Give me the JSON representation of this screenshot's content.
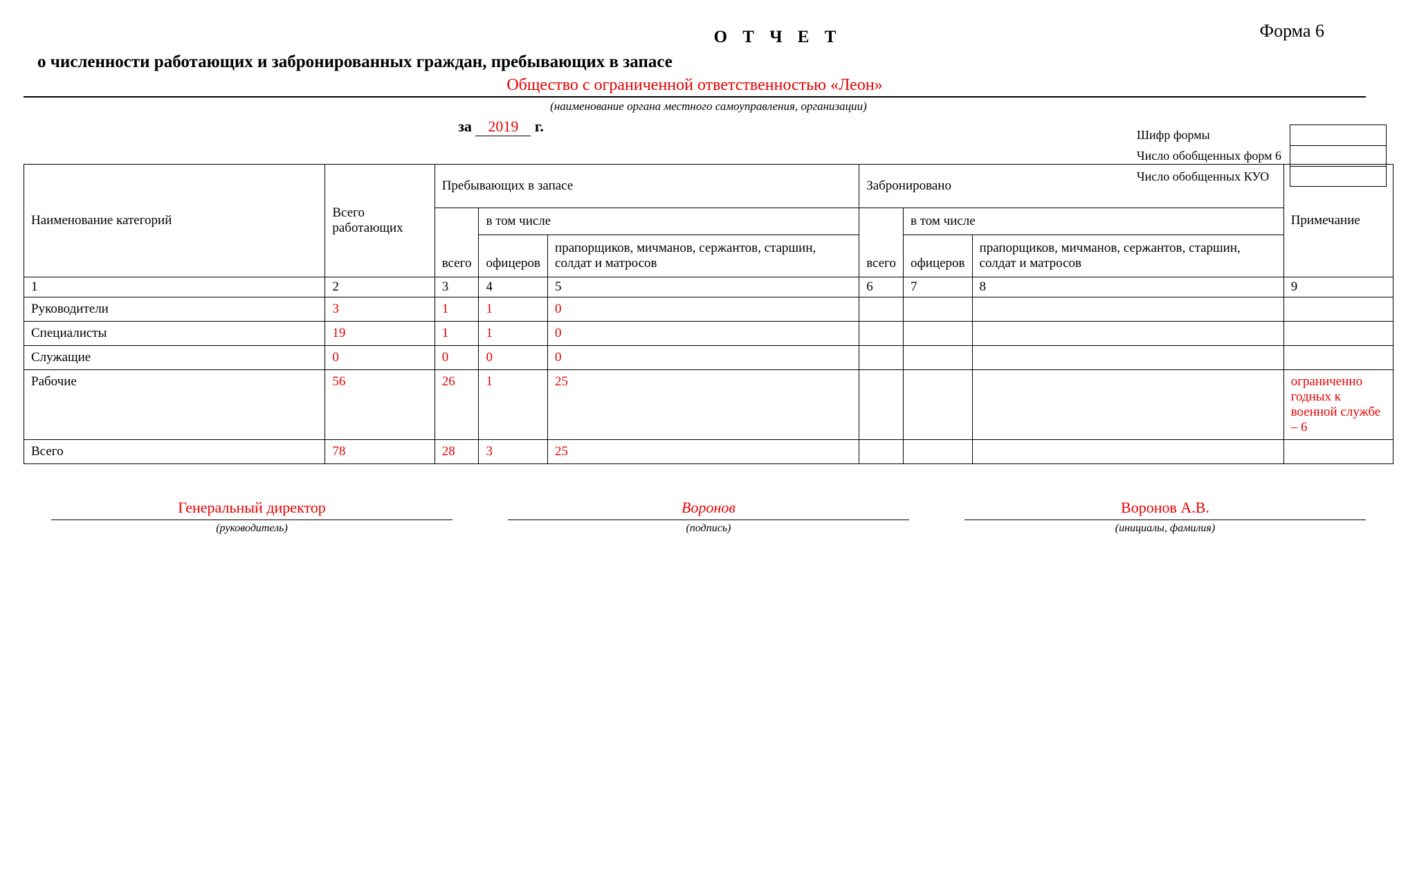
{
  "form_number": "Форма 6",
  "title_line1": "О Т Ч Е Т",
  "title_line2": "о численности работающих и забронированных граждан, пребывающих в запасе",
  "organization": "Общество с ограниченной ответственностью «Леон»",
  "organization_hint": "(наименование органа местного самоуправления, организации)",
  "year_prefix": "за",
  "year": "2019",
  "year_suffix": "г.",
  "meta": {
    "l1": "Шифр формы",
    "l2": "Число обобщенных форм 6",
    "l3": "Число обобщенных КУО"
  },
  "colors": {
    "accent": "#e60000",
    "text": "#000000",
    "bg": "#ffffff"
  },
  "headers": {
    "col1": "Наименование категорий",
    "col2": "Всего работающих",
    "grp1": "Пребывающих в запасе",
    "grp2": "Забронировано",
    "sub_total": "всего",
    "sub_incl": "в том числе",
    "sub_off": "офицеров",
    "sub_other": "прапорщиков, мичманов, сержантов, старшин, солдат и матросов",
    "col9": "Примечание"
  },
  "numrow": [
    "1",
    "2",
    "3",
    "4",
    "5",
    "6",
    "7",
    "8",
    "9"
  ],
  "rows": [
    {
      "name": "Руководители",
      "c2": "3",
      "c3": "1",
      "c4": "1",
      "c5": "0",
      "c6": "",
      "c7": "",
      "c8": "",
      "c9": ""
    },
    {
      "name": "Специалисты",
      "c2": "19",
      "c3": "1",
      "c4": "1",
      "c5": "0",
      "c6": "",
      "c7": "",
      "c8": "",
      "c9": ""
    },
    {
      "name": "Служащие",
      "c2": "0",
      "c3": "0",
      "c4": "0",
      "c5": "0",
      "c6": "",
      "c7": "",
      "c8": "",
      "c9": ""
    },
    {
      "name": "Рабочие",
      "c2": "56",
      "c3": "26",
      "c4": "1",
      "c5": "25",
      "c6": "",
      "c7": "",
      "c8": "",
      "c9": "ограниченно годных к военной службе – 6"
    },
    {
      "name": "Всего",
      "c2": "78",
      "c3": "28",
      "c4": "3",
      "c5": "25",
      "c6": "",
      "c7": "",
      "c8": "",
      "c9": ""
    }
  ],
  "sign": {
    "role_val": "Генеральный директор",
    "role_hint": "(руководитель)",
    "sig_val": "Воронов",
    "sig_hint": "(подпись)",
    "name_val": "Воронов А.В.",
    "name_hint": "(инициалы, фамилия)"
  }
}
